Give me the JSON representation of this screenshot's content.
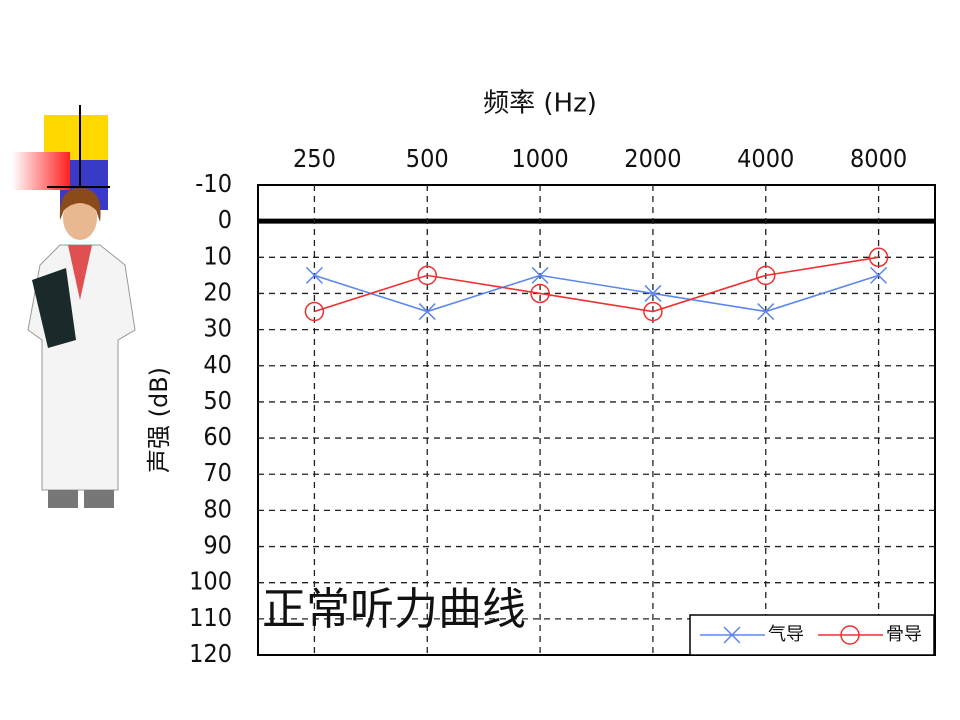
{
  "chart_data": {
    "type": "line",
    "xlabel": "频率 (Hz)",
    "ylabel": "声强 (dB)",
    "annotation": "正常听力曲线",
    "categories": [
      "250",
      "500",
      "1000",
      "2000",
      "4000",
      "8000"
    ],
    "series": [
      {
        "name": "气导",
        "color": "#5b86f0",
        "marker": "x",
        "values": [
          15,
          25,
          15,
          20,
          25,
          15
        ]
      },
      {
        "name": "骨导",
        "color": "#f03030",
        "marker": "o",
        "values": [
          25,
          15,
          20,
          25,
          15,
          10
        ]
      }
    ],
    "ylim": [
      -10,
      120
    ],
    "y_inverted": true,
    "yticks": [
      -10,
      0,
      10,
      20,
      30,
      40,
      50,
      60,
      70,
      80,
      90,
      100,
      110,
      120
    ],
    "grid": true,
    "legend": "lower right"
  }
}
